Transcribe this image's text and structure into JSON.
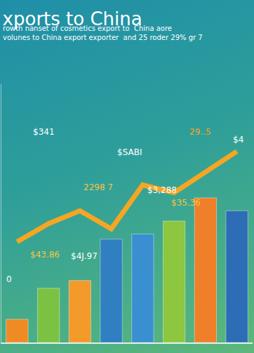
{
  "chart_data": {
    "type": "bar",
    "title": "xports to China",
    "subtitle": [
      "rowth nanset of cosmetics export to  China aore",
      "volunes to China export exporter  and 25 roder 29% gr 7"
    ],
    "categories": [
      null,
      null,
      null,
      null,
      null,
      null,
      null,
      null
    ],
    "series": [
      {
        "type": "bar",
        "colors": [
          "#f08a24",
          "#7cc242",
          "#f39a2b",
          "#2f7fc1",
          "#3a8fd0",
          "#8dc63f",
          "#f07f2a",
          "#2c6db5"
        ],
        "values": [
          9,
          21,
          24,
          40,
          42,
          47,
          56,
          51
        ]
      },
      {
        "type": "line",
        "color": "#f5a623",
        "values": [
          39,
          46,
          51,
          44,
          61,
          58,
          66,
          74
        ]
      }
    ],
    "annotations": [
      "$341",
      "$SABI",
      "29..5",
      "$4",
      "2298 7",
      "$3,288",
      "$35.36",
      "$43.86",
      "$4J.97",
      "0"
    ],
    "ylim": [
      0,
      100
    ],
    "grid": false,
    "tick_labels": false
  }
}
